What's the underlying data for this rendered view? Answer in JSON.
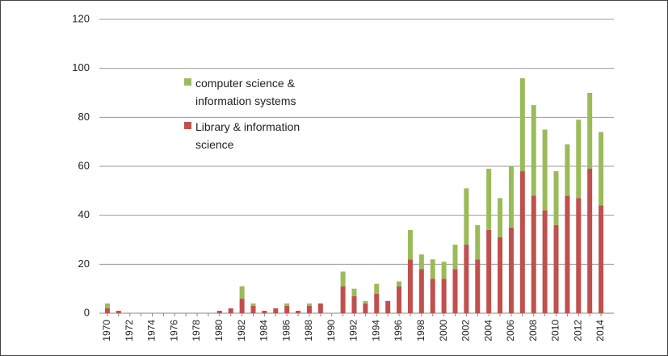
{
  "chart_data": {
    "type": "stacked_bar",
    "categories": [
      "1970",
      null,
      "1972",
      null,
      "1974",
      null,
      "1976",
      null,
      "1978",
      null,
      "1980",
      null,
      "1982",
      null,
      "1984",
      null,
      "1986",
      null,
      "1988",
      null,
      "1990",
      null,
      "1992",
      null,
      "1994",
      null,
      "1996",
      null,
      "1998",
      null,
      "2000",
      null,
      "2002",
      null,
      "2004",
      null,
      "2006",
      null,
      "2008",
      null,
      "2010",
      null,
      "2012",
      null,
      "2014"
    ],
    "series": [
      {
        "name": "Library & information science",
        "color": "#c0504d",
        "values": [
          2,
          1,
          0,
          0,
          0,
          0,
          0,
          0,
          0,
          0,
          1,
          2,
          6,
          3,
          1,
          2,
          3,
          1,
          3,
          4,
          0,
          11,
          7,
          4,
          8,
          5,
          11,
          22,
          18,
          14,
          14,
          18,
          28,
          22,
          34,
          31,
          35,
          58,
          48,
          42,
          36,
          48,
          47,
          59,
          44
        ]
      },
      {
        "name": "computer science & information systems",
        "color": "#9bbb59",
        "values": [
          2,
          0,
          0,
          0,
          0,
          0,
          0,
          0,
          0,
          0,
          0,
          0,
          5,
          1,
          0,
          0,
          1,
          0,
          1,
          0,
          0,
          6,
          3,
          1,
          4,
          0,
          2,
          12,
          6,
          8,
          7,
          10,
          23,
          14,
          25,
          16,
          25,
          38,
          37,
          33,
          22,
          21,
          32,
          31,
          30
        ]
      }
    ],
    "ylim": [
      0,
      120
    ],
    "yticks": [
      0,
      20,
      40,
      60,
      80,
      100,
      120
    ],
    "grid": true
  }
}
